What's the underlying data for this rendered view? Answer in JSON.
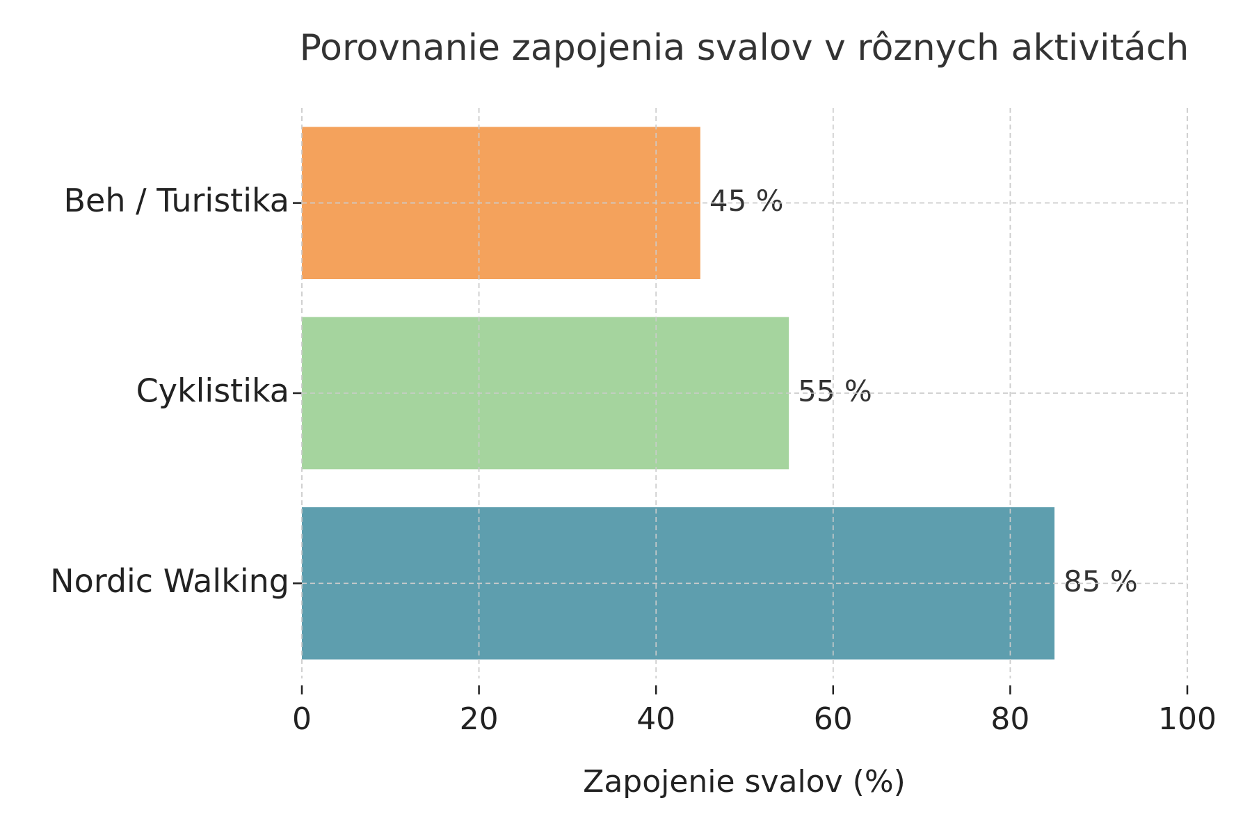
{
  "chart_data": {
    "type": "barh",
    "title": "Porovnanie zapojenia svalov v rôznych aktivitách",
    "xlabel": "Zapojenie svalov (%)",
    "categories": [
      "Beh / Turistika",
      "Cyklistika",
      "Nordic Walking"
    ],
    "values": [
      45,
      55,
      85
    ],
    "value_labels": [
      "45 %",
      "55 %",
      "85 %"
    ],
    "colors": [
      "#f4a25c",
      "#a5d49e",
      "#5e9eae"
    ],
    "xlim": [
      0,
      100
    ],
    "xticks": [
      0,
      20,
      40,
      60,
      80,
      100
    ],
    "grid": true
  }
}
